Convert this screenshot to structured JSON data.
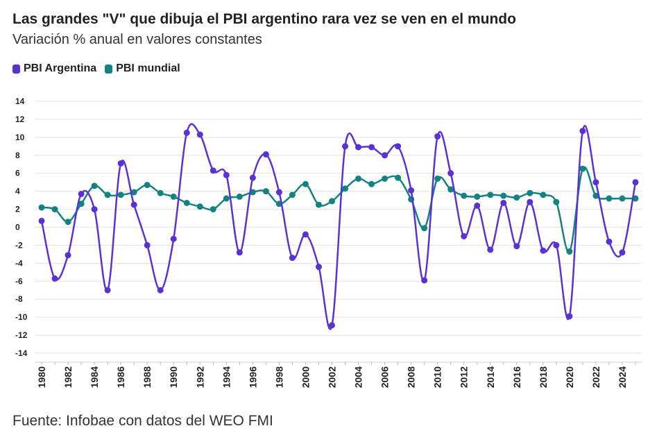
{
  "header": {
    "title": "Las grandes \"V\" que dibuja el PBI argentino rara vez se ven en el mundo",
    "subtitle": "Variación % anual en valores constantes"
  },
  "footer": {
    "source": "Fuente: Infobae con datos del WEO FMI"
  },
  "chart_data": {
    "type": "line",
    "title": "Las grandes \"V\" que dibuja el PBI argentino rara vez se ven en el mundo",
    "subtitle": "Variación % anual en valores constantes",
    "xlabel": "",
    "ylabel": "",
    "ylim": [
      -15,
      14
    ],
    "yticks": [
      14,
      12,
      10,
      8,
      6,
      4,
      2,
      0,
      -2,
      -4,
      -6,
      -8,
      -10,
      -12,
      -14
    ],
    "x": [
      1980,
      1981,
      1982,
      1983,
      1984,
      1985,
      1986,
      1987,
      1988,
      1989,
      1990,
      1991,
      1992,
      1993,
      1994,
      1995,
      1996,
      1997,
      1998,
      1999,
      2000,
      2001,
      2002,
      2003,
      2004,
      2005,
      2006,
      2007,
      2008,
      2009,
      2010,
      2011,
      2012,
      2013,
      2014,
      2015,
      2016,
      2017,
      2018,
      2019,
      2020,
      2021,
      2022,
      2023,
      2024,
      2025
    ],
    "xtick_labels": [
      "1980",
      "1982",
      "1984",
      "1986",
      "1988",
      "1990",
      "1992",
      "1994",
      "1996",
      "1998",
      "2000",
      "2002",
      "2004",
      "2006",
      "2008",
      "2010",
      "2012",
      "2014",
      "2016",
      "2018",
      "2020",
      "2022",
      "2024"
    ],
    "grid": true,
    "legend_position": "top-left",
    "series": [
      {
        "name": "PBI Argentina",
        "color": "#5a32d4",
        "values": [
          0.7,
          -5.7,
          -3.1,
          3.7,
          2.0,
          -7.0,
          7.1,
          2.5,
          -2.0,
          -7.0,
          -1.3,
          10.5,
          10.3,
          6.3,
          5.8,
          -2.8,
          5.5,
          8.1,
          3.9,
          -3.4,
          -0.8,
          -4.4,
          -10.9,
          9.0,
          8.9,
          8.9,
          8.0,
          9.0,
          4.1,
          -5.9,
          10.1,
          6.0,
          -1.0,
          2.4,
          -2.5,
          2.7,
          -2.1,
          2.8,
          -2.6,
          -2.0,
          -9.9,
          10.7,
          5.0,
          -1.6,
          -2.8,
          5.0
        ]
      },
      {
        "name": "PBI mundial",
        "color": "#148282",
        "values": [
          2.2,
          2.0,
          0.6,
          2.6,
          4.6,
          3.6,
          3.6,
          3.9,
          4.7,
          3.8,
          3.4,
          2.7,
          2.3,
          2.0,
          3.2,
          3.4,
          3.9,
          4.0,
          2.6,
          3.6,
          4.8,
          2.5,
          2.9,
          4.3,
          5.4,
          4.8,
          5.4,
          5.5,
          3.1,
          -0.1,
          5.4,
          4.2,
          3.5,
          3.4,
          3.6,
          3.5,
          3.3,
          3.8,
          3.6,
          2.8,
          -2.7,
          6.5,
          3.5,
          3.2,
          3.2,
          3.2
        ]
      }
    ]
  }
}
